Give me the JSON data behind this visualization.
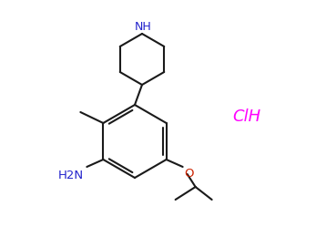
{
  "background": "#ffffff",
  "bond_color": "#1a1a1a",
  "NH_color": "#2222cc",
  "O_color": "#cc2200",
  "HCl_color": "#ff00ff",
  "NH2_color": "#2222cc",
  "line_width": 1.5,
  "figsize": [
    3.47,
    2.49
  ],
  "dpi": 100,
  "ClH_text": "ClH",
  "NH_text": "NH",
  "NH2_text": "H2N",
  "O_text": "O"
}
